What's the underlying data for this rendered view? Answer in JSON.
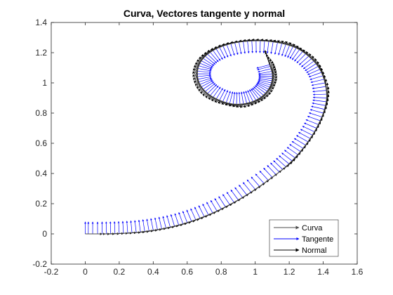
{
  "chart_data": {
    "type": "quiver",
    "title": "Curva, Vectores tangente y normal",
    "xlabel": "",
    "ylabel": "",
    "xlim": [
      -0.2,
      1.6
    ],
    "ylim": [
      -0.2,
      1.4
    ],
    "xticks": [
      -0.2,
      0,
      0.2,
      0.4,
      0.6,
      0.8,
      1,
      1.2,
      1.4,
      1.6
    ],
    "yticks": [
      -0.2,
      0,
      0.2,
      0.4,
      0.6,
      0.8,
      1,
      1.2,
      1.4
    ],
    "xtick_labels": [
      "-0.2",
      "0",
      "0.2",
      "0.4",
      "0.6",
      "0.8",
      "1",
      "1.2",
      "1.4",
      "1.6"
    ],
    "ytick_labels": [
      "-0.2",
      "0",
      "0.2",
      "0.4",
      "0.6",
      "0.8",
      "1",
      "1.2",
      "1.4"
    ],
    "grid": false,
    "legend_position": "bottom-right",
    "series": [
      {
        "name": "Curva",
        "color": "#4d4d4d"
      },
      {
        "name": "Tangente",
        "color": "#0000ff"
      },
      {
        "name": "Normal",
        "color": "#000000"
      }
    ],
    "curve_points": [
      [
        0.0,
        0.0
      ],
      [
        0.1,
        0.0
      ],
      [
        0.2,
        0.003
      ],
      [
        0.3,
        0.01
      ],
      [
        0.4,
        0.024
      ],
      [
        0.5,
        0.045
      ],
      [
        0.6,
        0.075
      ],
      [
        0.7,
        0.115
      ],
      [
        0.8,
        0.165
      ],
      [
        0.9,
        0.225
      ],
      [
        1.0,
        0.295
      ],
      [
        1.1,
        0.375
      ],
      [
        1.18,
        0.445
      ],
      [
        1.25,
        0.525
      ],
      [
        1.31,
        0.61
      ],
      [
        1.36,
        0.7
      ],
      [
        1.4,
        0.8
      ],
      [
        1.42,
        0.9
      ],
      [
        1.41,
        1.0
      ],
      [
        1.38,
        1.09
      ],
      [
        1.33,
        1.16
      ],
      [
        1.26,
        1.22
      ],
      [
        1.18,
        1.255
      ],
      [
        1.08,
        1.275
      ],
      [
        0.98,
        1.278
      ],
      [
        0.88,
        1.265
      ],
      [
        0.79,
        1.235
      ],
      [
        0.72,
        1.19
      ],
      [
        0.675,
        1.13
      ],
      [
        0.66,
        1.06
      ],
      [
        0.675,
        0.99
      ],
      [
        0.72,
        0.93
      ],
      [
        0.79,
        0.885
      ],
      [
        0.87,
        0.86
      ],
      [
        0.95,
        0.865
      ],
      [
        1.02,
        0.895
      ],
      [
        1.07,
        0.945
      ],
      [
        1.095,
        1.0
      ],
      [
        1.1,
        1.06
      ],
      [
        1.085,
        1.12
      ]
    ],
    "tangent_length": 0.08,
    "normal_length": 0.1
  }
}
